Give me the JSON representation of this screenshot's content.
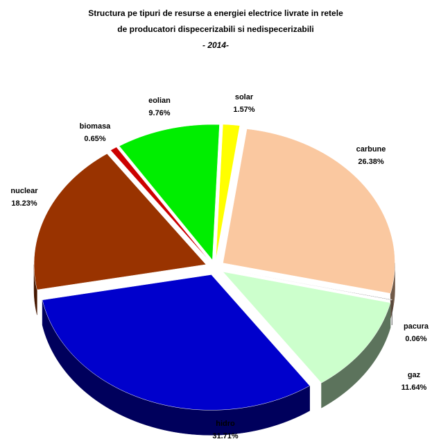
{
  "chart_data": {
    "type": "pie",
    "title": [
      "Structura pe tipuri de resurse a energiei electrice livrate in retele",
      "de producatori dispecerizabili si nedispecerizabili"
    ],
    "subtitle": "- 2014-",
    "categories": [
      "carbune",
      "pacura",
      "gaz",
      "hidro",
      "nuclear",
      "biomasa",
      "eolian",
      "solar"
    ],
    "values": [
      26.38,
      0.06,
      11.64,
      31.71,
      18.23,
      0.65,
      9.76,
      1.57
    ],
    "value_labels": [
      "26.38%",
      "0.06%",
      "11.64%",
      "31.71%",
      "18.23%",
      "0.65%",
      "9.76%",
      "1.57%"
    ],
    "colors": [
      "#fac8a0",
      "#333333",
      "#ccffcc",
      "#0000cc",
      "#993300",
      "#cc0000",
      "#00ee00",
      "#ffff00"
    ]
  }
}
